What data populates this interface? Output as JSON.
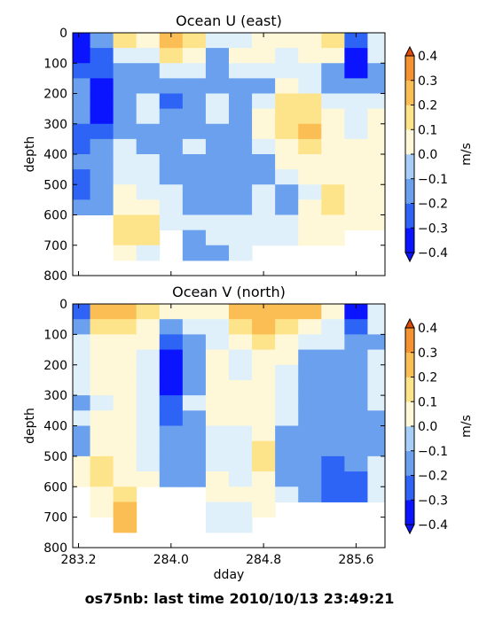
{
  "figure": {
    "suptitle": "os75nb: last time 2010/10/13 23:49:21",
    "colormap_levels": [
      -0.4,
      -0.3,
      -0.2,
      -0.1,
      0.0,
      0.1,
      0.2,
      0.3,
      0.4
    ],
    "colormap_colors": [
      "#0a14ff",
      "#2e64f5",
      "#6aa0ee",
      "#a8cdf6",
      "#dff0fb",
      "#fff8d8",
      "#fde48a",
      "#fbbe55",
      "#f59231",
      "#ec5a10"
    ],
    "under_color": "#0a14ff",
    "over_color": "#e04a08",
    "missing_color": "#ffffff"
  },
  "chart_data": [
    {
      "type": "heatmap",
      "title": "Ocean U (east)",
      "ylabel": "depth",
      "xlabel": "",
      "xlim": [
        283.15,
        285.85
      ],
      "ylim": [
        800,
        0
      ],
      "y_inverted": true,
      "xticks": [
        283.2,
        284.0,
        284.8,
        285.6
      ],
      "xtick_labels_visible": false,
      "yticks": [
        0,
        100,
        200,
        300,
        400,
        500,
        600,
        700,
        800
      ],
      "colorbar": {
        "label": "m/s",
        "ticks": [
          "0.4",
          "0.3",
          "0.2",
          "0.1",
          "0.0",
          "−0.1",
          "−0.2",
          "−0.3",
          "−0.4"
        ],
        "extend": "both"
      },
      "depth_bins": [
        25,
        75,
        125,
        175,
        225,
        275,
        325,
        375,
        425,
        475,
        525,
        575,
        625,
        675,
        725,
        775
      ],
      "columns": [
        {
          "x": 283.2,
          "values": [
            -0.3,
            -0.3,
            -0.2,
            -0.1,
            -0.1,
            -0.1,
            -0.2,
            -0.2,
            -0.1,
            -0.2,
            -0.2,
            -0.1,
            null,
            null,
            null,
            null
          ]
        },
        {
          "x": 283.4,
          "values": [
            -0.1,
            -0.2,
            -0.2,
            -0.3,
            -0.4,
            -0.3,
            -0.2,
            -0.1,
            -0.1,
            -0.1,
            -0.1,
            -0.1,
            null,
            null,
            null,
            null
          ]
        },
        {
          "x": 283.6,
          "values": [
            0.2,
            0.0,
            -0.1,
            -0.1,
            -0.1,
            -0.1,
            -0.1,
            0.0,
            0.0,
            0.0,
            0.1,
            0.1,
            0.2,
            0.2,
            0.1,
            null
          ]
        },
        {
          "x": 283.8,
          "values": [
            0.1,
            0.0,
            -0.1,
            -0.1,
            0.0,
            0.0,
            -0.1,
            -0.1,
            0.0,
            0.0,
            0.0,
            0.1,
            0.2,
            0.2,
            0.0,
            null
          ]
        },
        {
          "x": 284.0,
          "values": [
            0.3,
            0.2,
            0.0,
            -0.1,
            -0.2,
            -0.1,
            -0.1,
            -0.1,
            -0.1,
            -0.1,
            0.0,
            0.0,
            0.0,
            null,
            null,
            null
          ]
        },
        {
          "x": 284.2,
          "values": [
            0.2,
            0.1,
            0.0,
            -0.1,
            -0.1,
            -0.1,
            -0.1,
            0.0,
            -0.1,
            -0.1,
            -0.1,
            -0.1,
            0.0,
            -0.1,
            -0.1,
            null
          ]
        },
        {
          "x": 284.4,
          "values": [
            0.0,
            -0.1,
            -0.1,
            -0.1,
            0.0,
            0.0,
            -0.1,
            -0.1,
            -0.1,
            -0.1,
            -0.1,
            -0.1,
            0.0,
            0.0,
            -0.1,
            null
          ]
        },
        {
          "x": 284.6,
          "values": [
            0.0,
            0.1,
            0.0,
            -0.1,
            -0.1,
            -0.1,
            -0.1,
            -0.1,
            -0.1,
            -0.1,
            -0.1,
            -0.1,
            0.0,
            0.0,
            0.0,
            null
          ]
        },
        {
          "x": 284.8,
          "values": [
            0.1,
            0.1,
            0.0,
            -0.1,
            0.0,
            0.1,
            0.1,
            0.0,
            -0.1,
            -0.1,
            0.0,
            0.0,
            0.0,
            0.0,
            null,
            null
          ]
        },
        {
          "x": 285.0,
          "values": [
            0.1,
            0.0,
            0.0,
            0.1,
            0.2,
            0.2,
            0.2,
            0.1,
            0.1,
            0.0,
            -0.1,
            -0.1,
            0.0,
            0.0,
            null,
            null
          ]
        },
        {
          "x": 285.2,
          "values": [
            0.1,
            0.1,
            0.0,
            0.0,
            0.2,
            0.2,
            0.3,
            0.2,
            0.1,
            0.1,
            0.0,
            0.1,
            0.1,
            0.1,
            null,
            null
          ]
        },
        {
          "x": 285.4,
          "values": [
            0.2,
            0.1,
            -0.1,
            -0.1,
            0.0,
            0.1,
            0.1,
            0.1,
            0.1,
            0.1,
            0.2,
            0.2,
            0.1,
            0.1,
            null,
            null
          ]
        },
        {
          "x": 285.6,
          "values": [
            -0.2,
            -0.3,
            -0.3,
            -0.1,
            0.0,
            0.0,
            0.0,
            0.1,
            0.1,
            0.1,
            0.1,
            0.1,
            0.1,
            null,
            null,
            null
          ]
        },
        {
          "x": 285.8,
          "values": [
            0.0,
            0.0,
            -0.1,
            -0.1,
            0.0,
            0.1,
            0.1,
            0.1,
            0.1,
            0.1,
            0.1,
            0.1,
            0.1,
            null,
            null,
            null
          ]
        }
      ]
    },
    {
      "type": "heatmap",
      "title": "Ocean V (north)",
      "ylabel": "depth",
      "xlabel": "dday",
      "xlim": [
        283.15,
        285.85
      ],
      "ylim": [
        800,
        0
      ],
      "y_inverted": true,
      "xticks": [
        283.2,
        284.0,
        284.8,
        285.6
      ],
      "xtick_labels": [
        "283.2",
        "284.0",
        "284.8",
        "285.6"
      ],
      "yticks": [
        0,
        100,
        200,
        300,
        400,
        500,
        600,
        700,
        800
      ],
      "colorbar": {
        "label": "m/s",
        "ticks": [
          "0.4",
          "0.3",
          "0.2",
          "0.1",
          "0.0",
          "−0.1",
          "−0.2",
          "−0.3",
          "−0.4"
        ],
        "extend": "both"
      },
      "depth_bins": [
        25,
        75,
        125,
        175,
        225,
        275,
        325,
        375,
        425,
        475,
        525,
        575,
        625,
        675,
        725,
        775
      ],
      "columns": [
        {
          "x": 283.2,
          "values": [
            -0.2,
            -0.1,
            0.0,
            0.0,
            0.0,
            0.0,
            -0.1,
            0.0,
            -0.1,
            -0.1,
            0.1,
            0.1,
            null,
            null,
            null,
            null
          ]
        },
        {
          "x": 283.4,
          "values": [
            0.3,
            0.2,
            0.1,
            0.1,
            0.1,
            0.1,
            0.0,
            0.1,
            0.1,
            0.1,
            0.2,
            0.2,
            0.1,
            0.1,
            null,
            null
          ]
        },
        {
          "x": 283.6,
          "values": [
            0.3,
            0.2,
            0.1,
            0.1,
            0.1,
            0.1,
            0.1,
            0.1,
            0.1,
            0.1,
            0.1,
            0.1,
            0.2,
            0.3,
            0.3,
            null
          ]
        },
        {
          "x": 283.8,
          "values": [
            0.2,
            0.1,
            0.1,
            0.0,
            0.0,
            0.0,
            0.0,
            0.0,
            0.0,
            0.0,
            0.0,
            0.1,
            null,
            null,
            null,
            null
          ]
        },
        {
          "x": 284.0,
          "values": [
            0.1,
            -0.1,
            -0.2,
            -0.3,
            -0.3,
            -0.3,
            -0.2,
            -0.2,
            -0.1,
            -0.1,
            -0.1,
            -0.1,
            null,
            null,
            null,
            null
          ]
        },
        {
          "x": 284.2,
          "values": [
            0.1,
            0.0,
            -0.1,
            -0.1,
            -0.1,
            -0.1,
            0.0,
            -0.1,
            -0.1,
            -0.1,
            -0.1,
            -0.1,
            null,
            null,
            null,
            null
          ]
        },
        {
          "x": 284.4,
          "values": [
            0.1,
            0.0,
            0.0,
            0.1,
            0.1,
            0.1,
            0.1,
            0.1,
            0.0,
            0.0,
            0.0,
            0.1,
            0.1,
            0.0,
            0.0,
            null
          ]
        },
        {
          "x": 284.6,
          "values": [
            0.3,
            0.2,
            0.1,
            0.0,
            0.0,
            0.1,
            0.1,
            0.1,
            0.0,
            0.0,
            0.0,
            0.0,
            0.1,
            0.0,
            0.0,
            null
          ]
        },
        {
          "x": 284.8,
          "values": [
            0.3,
            0.3,
            0.2,
            0.1,
            0.1,
            0.1,
            0.1,
            0.1,
            0.1,
            0.2,
            0.2,
            0.1,
            0.1,
            0.1,
            null,
            null
          ]
        },
        {
          "x": 285.0,
          "values": [
            0.3,
            0.2,
            0.1,
            0.1,
            0.0,
            0.0,
            0.0,
            0.0,
            -0.1,
            -0.1,
            -0.1,
            -0.1,
            0.0,
            null,
            null,
            null
          ]
        },
        {
          "x": 285.2,
          "values": [
            0.3,
            0.1,
            0.0,
            -0.1,
            -0.1,
            -0.1,
            -0.1,
            -0.1,
            -0.1,
            -0.1,
            -0.1,
            -0.1,
            -0.1,
            null,
            null,
            null
          ]
        },
        {
          "x": 285.4,
          "values": [
            0.1,
            0.0,
            0.0,
            -0.1,
            -0.1,
            -0.1,
            -0.1,
            -0.1,
            -0.1,
            -0.1,
            -0.2,
            -0.2,
            -0.2,
            null,
            null,
            null
          ]
        },
        {
          "x": 285.6,
          "values": [
            -0.3,
            -0.2,
            -0.1,
            -0.1,
            -0.1,
            -0.1,
            -0.1,
            -0.1,
            -0.1,
            -0.1,
            -0.1,
            -0.2,
            -0.2,
            null,
            null,
            null
          ]
        },
        {
          "x": 285.8,
          "values": [
            0.0,
            0.0,
            -0.1,
            0.0,
            0.0,
            0.0,
            0.0,
            -0.1,
            -0.1,
            -0.1,
            0.0,
            0.0,
            0.0,
            null,
            null,
            null
          ]
        }
      ]
    }
  ]
}
